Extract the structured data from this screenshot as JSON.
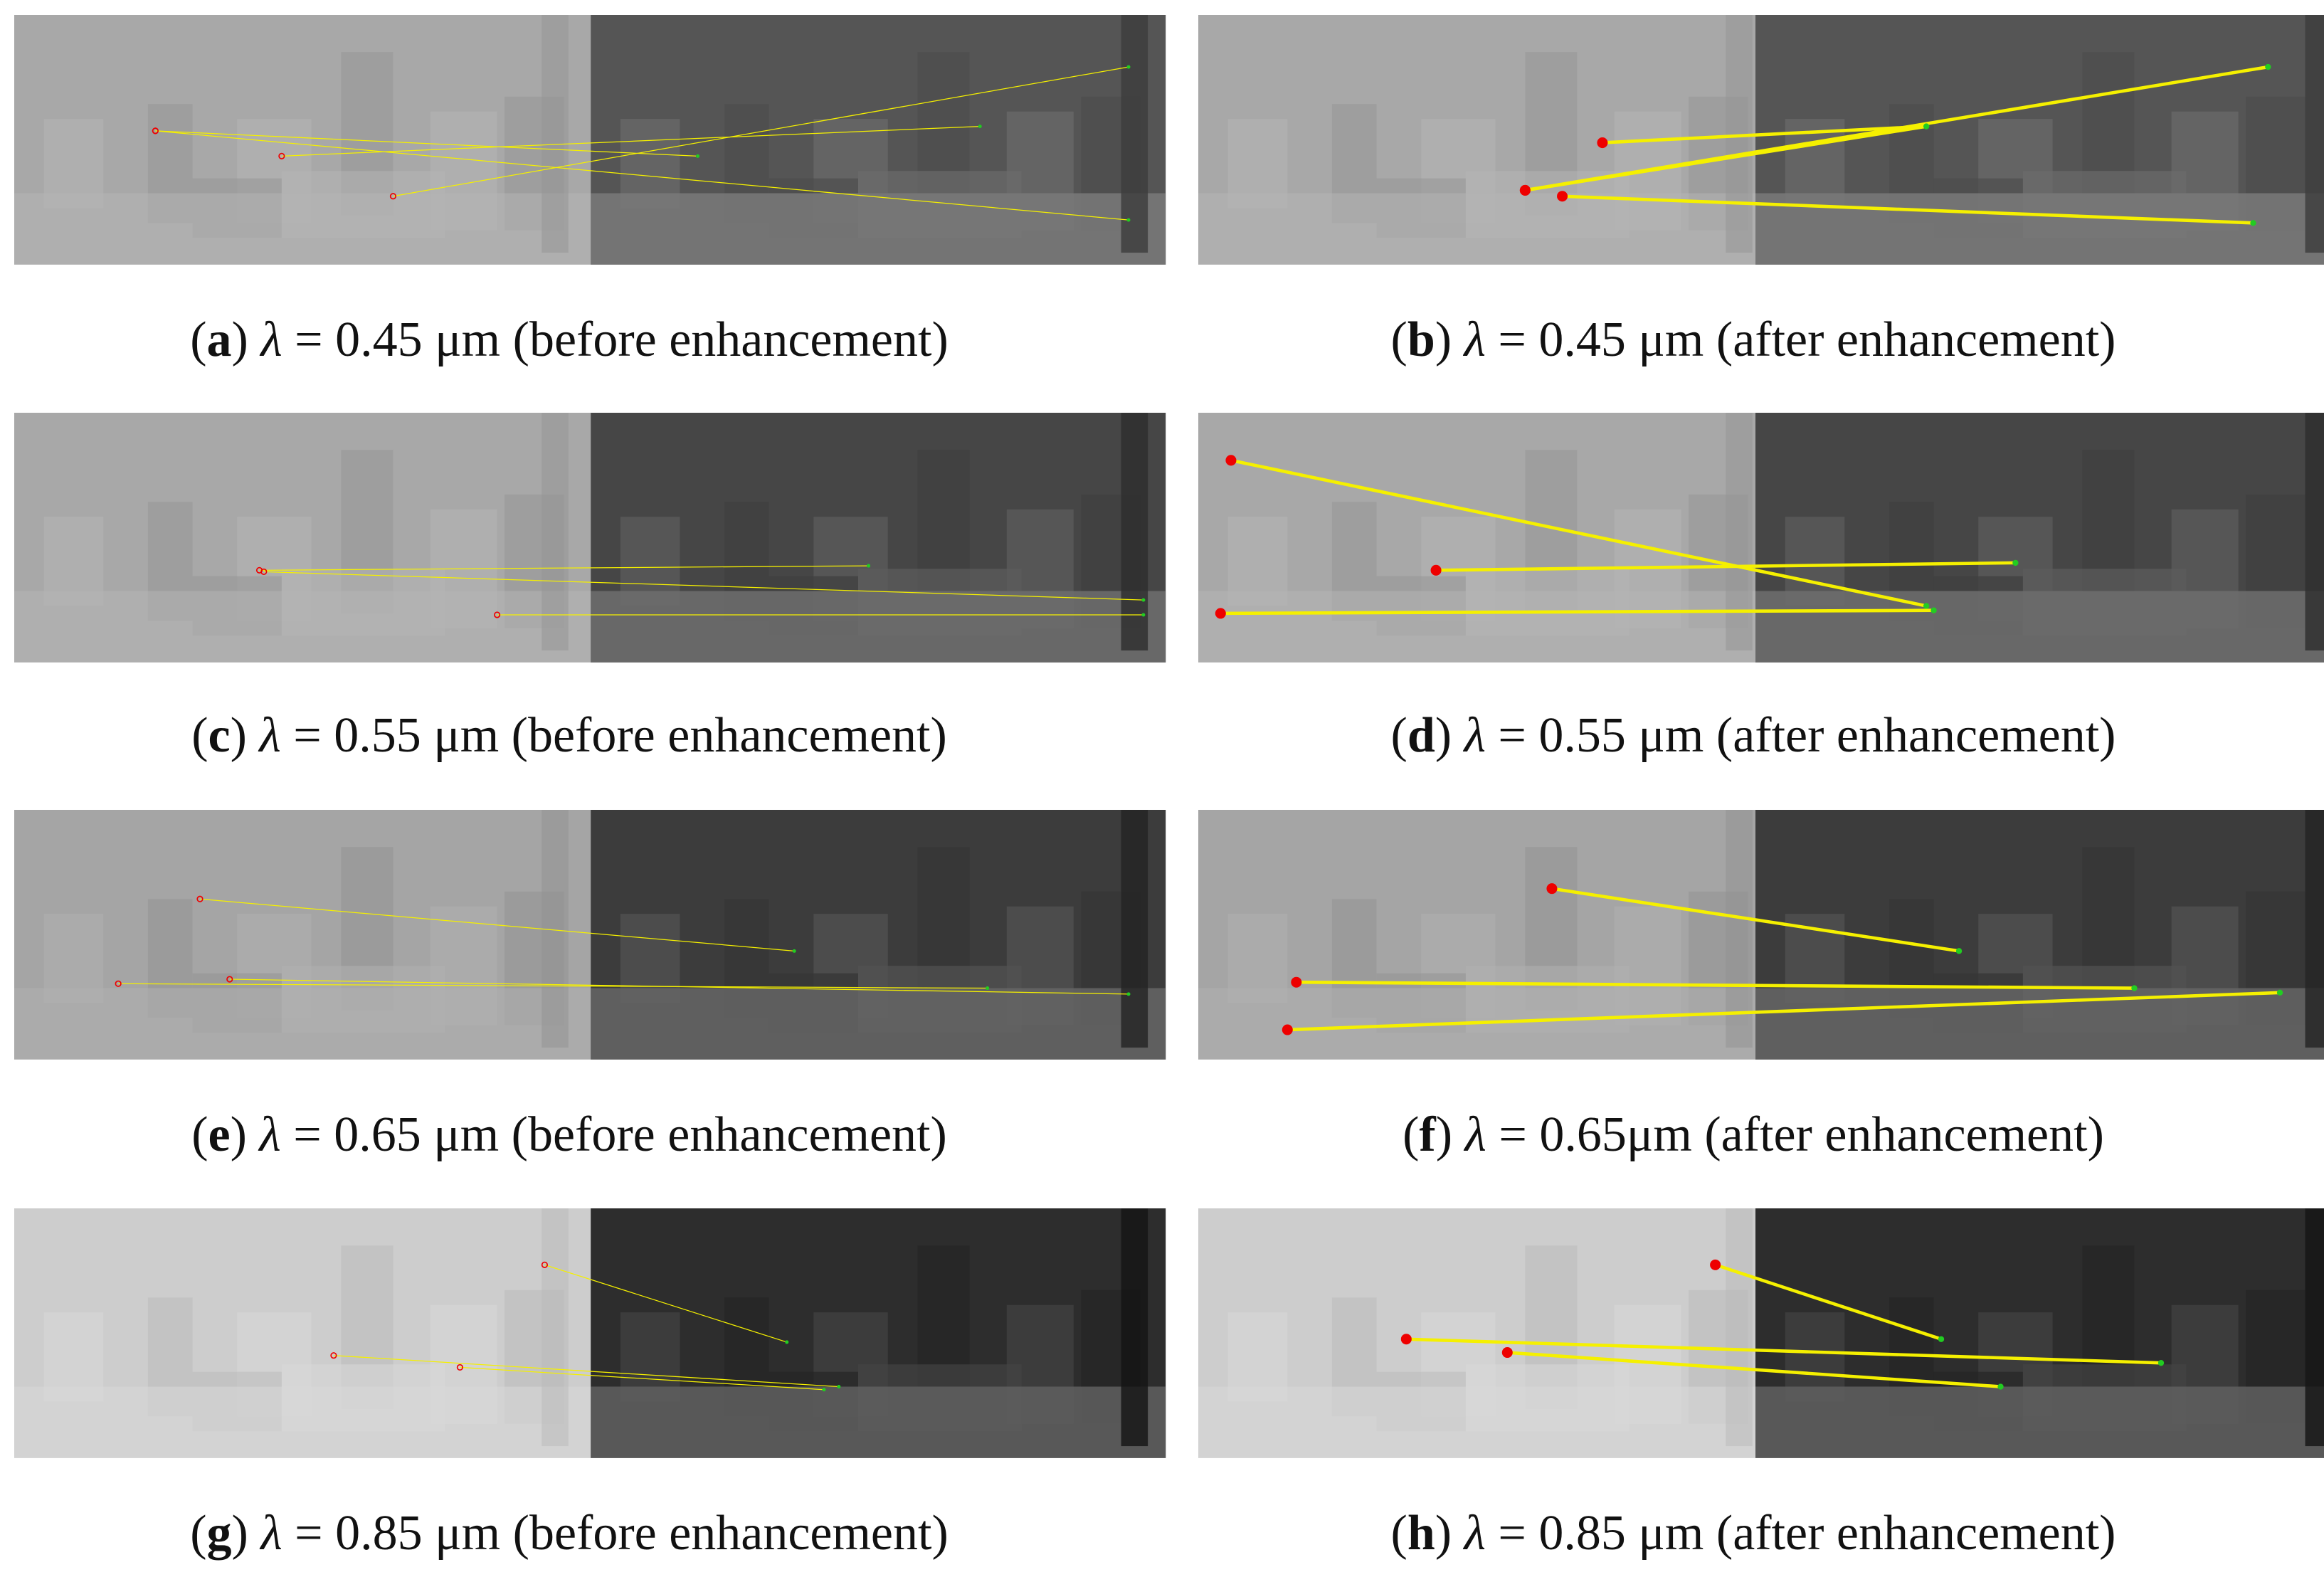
{
  "panels": [
    {
      "open": "(",
      "letter": "a",
      "close": ")",
      "symbol": "λ",
      "text": " = 0.45 μm (before enhancement)"
    },
    {
      "open": "(",
      "letter": "b",
      "close": ")",
      "symbol": "λ",
      "text": " = 0.45 μm (after enhancement)"
    },
    {
      "open": "(",
      "letter": "c",
      "close": ")",
      "symbol": "λ",
      "text": " = 0.55 μm (before enhancement)"
    },
    {
      "open": "(",
      "letter": "d",
      "close": ")",
      "symbol": "λ",
      "text": " = 0.55 μm (after enhancement)"
    },
    {
      "open": "(",
      "letter": "e",
      "close": ")",
      "symbol": "λ",
      "text": " = 0.65 μm (before enhancement)"
    },
    {
      "open": "(",
      "letter": "f",
      "close": ")",
      "symbol": "λ",
      "text": " = 0.65μm (after enhancement)"
    },
    {
      "open": "(",
      "letter": "g",
      "close": ")",
      "symbol": "λ",
      "text": " = 0.85 μm (before enhancement)"
    },
    {
      "open": "(",
      "letter": "h",
      "close": ")",
      "symbol": "λ",
      "text": " = 0.85 μm (after enhancement)"
    }
  ]
}
